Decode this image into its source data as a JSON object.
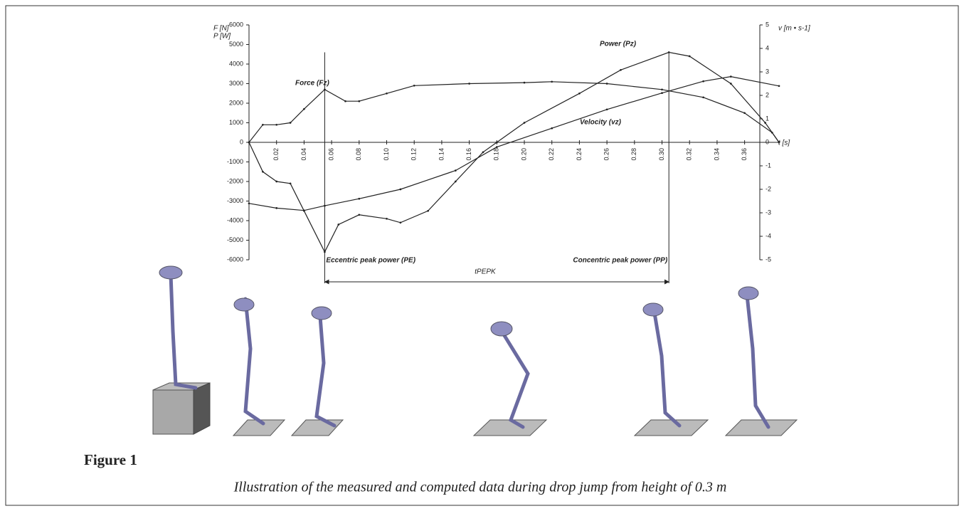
{
  "chart_data": {
    "type": "line",
    "y_axis_labels": [
      "F [N]",
      "P [W]"
    ],
    "y2_axis_label": "v [m • s-1]",
    "x_axis_label": "t [s]",
    "xlim": [
      0,
      0.385
    ],
    "xticks": [
      0.02,
      0.04,
      0.06,
      0.08,
      0.1,
      0.12,
      0.14,
      0.16,
      0.18,
      0.2,
      0.22,
      0.24,
      0.26,
      0.28,
      0.3,
      0.32,
      0.34,
      0.36
    ],
    "ylim": [
      -6000,
      6000
    ],
    "yticks": [
      -6000,
      -5000,
      -4000,
      -3000,
      -2000,
      -1000,
      0,
      1000,
      2000,
      3000,
      4000,
      5000,
      6000
    ],
    "y2lim": [
      -5,
      5
    ],
    "y2ticks": [
      -5,
      -4,
      -3,
      -2,
      -1,
      0,
      1,
      2,
      3,
      4,
      5
    ],
    "series": [
      {
        "name": "Force (Fz)",
        "color": "#222222",
        "x": [
          0,
          0.01,
          0.02,
          0.03,
          0.04,
          0.055,
          0.07,
          0.08,
          0.1,
          0.12,
          0.16,
          0.2,
          0.22,
          0.26,
          0.3,
          0.33,
          0.36,
          0.38,
          0.385
        ],
        "values": [
          0,
          900,
          900,
          1000,
          1700,
          2700,
          2100,
          2100,
          2500,
          2900,
          3000,
          3050,
          3100,
          3000,
          2700,
          2300,
          1500,
          500,
          0
        ]
      },
      {
        "name": "Power (Pz)",
        "color": "#222222",
        "x": [
          0,
          0.01,
          0.02,
          0.03,
          0.04,
          0.055,
          0.065,
          0.08,
          0.1,
          0.11,
          0.13,
          0.15,
          0.17,
          0.18,
          0.2,
          0.24,
          0.27,
          0.305,
          0.32,
          0.35,
          0.375,
          0.385
        ],
        "values": [
          0,
          -1500,
          -2000,
          -2100,
          -3500,
          -5600,
          -4200,
          -3700,
          -3900,
          -4100,
          -3500,
          -2000,
          -500,
          0,
          1000,
          2500,
          3700,
          4600,
          4400,
          3000,
          1000,
          0
        ]
      },
      {
        "name": "Velocity (vz)",
        "color": "#222222",
        "axis": "y2",
        "x": [
          0,
          0.02,
          0.04,
          0.055,
          0.08,
          0.11,
          0.15,
          0.18,
          0.22,
          0.26,
          0.3,
          0.33,
          0.35,
          0.385
        ],
        "values": [
          -2.6,
          -2.8,
          -2.9,
          -2.7,
          -2.4,
          -2.0,
          -1.2,
          -0.2,
          0.6,
          1.4,
          2.1,
          2.6,
          2.8,
          2.4
        ]
      }
    ],
    "annotations": [
      {
        "text": "Eccentric peak power (PE)",
        "x": 0.055
      },
      {
        "text": "Concentric peak power (PP)",
        "x": 0.305
      }
    ],
    "interval_label": "tPEPK"
  },
  "figure": {
    "label": "Figure 1",
    "caption": "Illustration of the measured and computed data during drop jump from height of 0.3 m"
  }
}
